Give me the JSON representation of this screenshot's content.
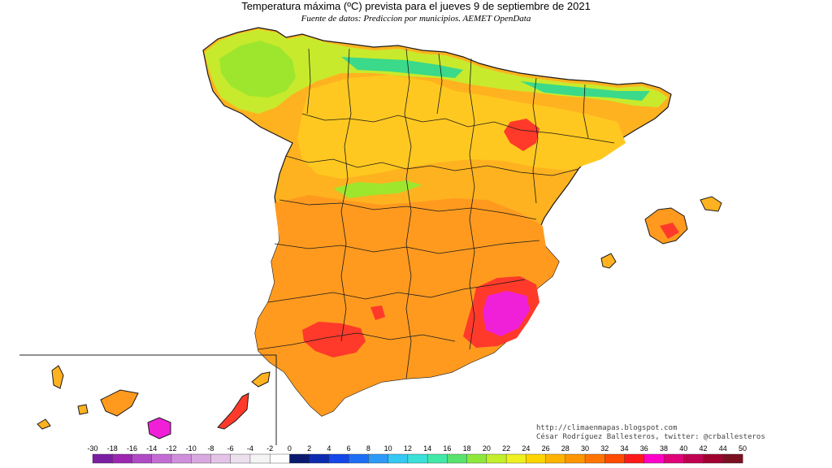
{
  "title": "Temperatura máxima (ºC) prevista para el jueves 9 de septiembre de 2021",
  "subtitle": "Fuente de datos: Prediccion por municipios. AEMET OpenData",
  "credit": {
    "url": "http://climaenmapas.blogspot.com",
    "author": "César Rodríguez Ballesteros, twitter: @crballesteros"
  },
  "legend": {
    "ticks": [
      "-30",
      "-18",
      "-16",
      "-14",
      "-12",
      "-10",
      "-8",
      "-6",
      "-4",
      "-2",
      "0",
      "2",
      "4",
      "6",
      "8",
      "10",
      "12",
      "14",
      "16",
      "18",
      "20",
      "22",
      "24",
      "26",
      "28",
      "30",
      "32",
      "34",
      "36",
      "38",
      "40",
      "42",
      "44",
      "50"
    ],
    "colors": [
      "#7b1fa2",
      "#9c27b0",
      "#b04bc4",
      "#c36dd4",
      "#d08fdc",
      "#d9a8e0",
      "#e3c3e6",
      "#ece0ee",
      "#f4f4f4",
      "#ffffff",
      "#0a1a6e",
      "#0d2bb0",
      "#1446e8",
      "#1f6ff5",
      "#2e9af7",
      "#35c8f2",
      "#3be0d8",
      "#42e8a8",
      "#58e36e",
      "#8ee83c",
      "#c2ee2c",
      "#eef020",
      "#ffd500",
      "#ffb300",
      "#ff9500",
      "#ff7500",
      "#ff4a00",
      "#ff1a1a",
      "#ff00c8",
      "#e0007a",
      "#c00050",
      "#a00030",
      "#7a1020"
    ]
  },
  "map_colors": {
    "hot_orange": "#ff9a1f",
    "warm_orange": "#ffb21f",
    "yellow_orange": "#ffc820",
    "yellow": "#ffe020",
    "green": "#9ee62e",
    "cool_green": "#3bd98a",
    "red": "#ff3a2a",
    "magenta": "#f020d8",
    "border": "#1a1a1a"
  }
}
